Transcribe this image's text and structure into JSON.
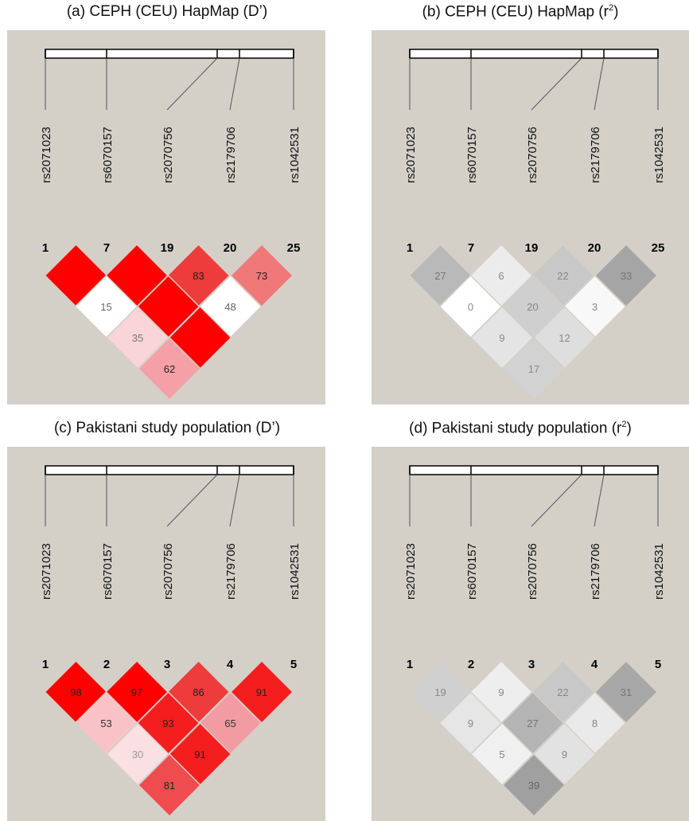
{
  "panels": [
    {
      "title": "(a) CEPH (CEU) HapMap (D’)",
      "title_main": "(a) CEPH (CEU) HapMap (D’)",
      "title_sup": "",
      "title_tail": "",
      "snps": [
        "rs2071023",
        "rs6070157",
        "rs2070756",
        "rs2179706",
        "rs1042531"
      ],
      "marker_numbers": [
        "1",
        "7",
        "19",
        "20",
        "25"
      ],
      "cells": [
        {
          "pair": [
            1,
            2
          ],
          "value": "",
          "color": "#ff0000",
          "text_color": "#000000"
        },
        {
          "pair": [
            2,
            3
          ],
          "value": "",
          "color": "#ff0000",
          "text_color": "#000000"
        },
        {
          "pair": [
            3,
            4
          ],
          "value": "83",
          "color": "#ee3b3b",
          "text_color": "#222222"
        },
        {
          "pair": [
            4,
            5
          ],
          "value": "73",
          "color": "#f07878",
          "text_color": "#222222"
        },
        {
          "pair": [
            1,
            3
          ],
          "value": "15",
          "color": "#ffffff",
          "text_color": "#666666"
        },
        {
          "pair": [
            2,
            4
          ],
          "value": "",
          "color": "#ff0000",
          "text_color": "#000000"
        },
        {
          "pair": [
            3,
            5
          ],
          "value": "48",
          "color": "#ffffff",
          "text_color": "#666666"
        },
        {
          "pair": [
            1,
            4
          ],
          "value": "35",
          "color": "#f9d4d8",
          "text_color": "#777777"
        },
        {
          "pair": [
            2,
            5
          ],
          "value": "",
          "color": "#ff0000",
          "text_color": "#000000"
        },
        {
          "pair": [
            1,
            5
          ],
          "value": "62",
          "color": "#f4a0a6",
          "text_color": "#222222"
        }
      ]
    },
    {
      "title": "(b) CEPH (CEU) HapMap (r2)",
      "title_main": "(b) CEPH (CEU) HapMap (r",
      "title_sup": "2",
      "title_tail": ")",
      "snps": [
        "rs2071023",
        "rs6070157",
        "rs2070756",
        "rs2179706",
        "rs1042531"
      ],
      "marker_numbers": [
        "1",
        "7",
        "19",
        "20",
        "25"
      ],
      "cells": [
        {
          "pair": [
            1,
            2
          ],
          "value": "27",
          "color": "#b9b9b9",
          "text_color": "#777777"
        },
        {
          "pair": [
            2,
            3
          ],
          "value": "6",
          "color": "#ececec",
          "text_color": "#888888"
        },
        {
          "pair": [
            3,
            4
          ],
          "value": "22",
          "color": "#c8c8c8",
          "text_color": "#888888"
        },
        {
          "pair": [
            4,
            5
          ],
          "value": "33",
          "color": "#a5a5a5",
          "text_color": "#777777"
        },
        {
          "pair": [
            1,
            3
          ],
          "value": "0",
          "color": "#ffffff",
          "text_color": "#888888"
        },
        {
          "pair": [
            2,
            4
          ],
          "value": "20",
          "color": "#cfcfcf",
          "text_color": "#888888"
        },
        {
          "pair": [
            3,
            5
          ],
          "value": "3",
          "color": "#f8f8f8",
          "text_color": "#888888"
        },
        {
          "pair": [
            1,
            4
          ],
          "value": "9",
          "color": "#e4e4e4",
          "text_color": "#888888"
        },
        {
          "pair": [
            2,
            5
          ],
          "value": "12",
          "color": "#dedede",
          "text_color": "#888888"
        },
        {
          "pair": [
            1,
            5
          ],
          "value": "17",
          "color": "#d2d2d2",
          "text_color": "#888888"
        }
      ]
    },
    {
      "title": "(c) Pakistani study population (D’)",
      "title_main": "(c) Pakistani study population (D’)",
      "title_sup": "",
      "title_tail": "",
      "snps": [
        "rs2071023",
        "rs6070157",
        "rs2070756",
        "rs2179706",
        "rs1042531"
      ],
      "marker_numbers": [
        "1",
        "2",
        "3",
        "4",
        "5"
      ],
      "cells": [
        {
          "pair": [
            1,
            2
          ],
          "value": "98",
          "color": "#ff0000",
          "text_color": "#222222"
        },
        {
          "pair": [
            2,
            3
          ],
          "value": "97",
          "color": "#ff0000",
          "text_color": "#222222"
        },
        {
          "pair": [
            3,
            4
          ],
          "value": "86",
          "color": "#ee3b3b",
          "text_color": "#222222"
        },
        {
          "pair": [
            4,
            5
          ],
          "value": "91",
          "color": "#f51e1e",
          "text_color": "#222222"
        },
        {
          "pair": [
            1,
            3
          ],
          "value": "53",
          "color": "#f8c2c6",
          "text_color": "#333333"
        },
        {
          "pair": [
            2,
            4
          ],
          "value": "93",
          "color": "#f51e1e",
          "text_color": "#222222"
        },
        {
          "pair": [
            3,
            5
          ],
          "value": "65",
          "color": "#f39ba2",
          "text_color": "#333333"
        },
        {
          "pair": [
            1,
            4
          ],
          "value": "30",
          "color": "#fbe0e3",
          "text_color": "#999999"
        },
        {
          "pair": [
            2,
            5
          ],
          "value": "91",
          "color": "#f51e1e",
          "text_color": "#222222"
        },
        {
          "pair": [
            1,
            5
          ],
          "value": "81",
          "color": "#ef4c50",
          "text_color": "#222222"
        }
      ]
    },
    {
      "title": "(d) Pakistani study population (r2)",
      "title_main": "(d) Pakistani study population (r",
      "title_sup": "2",
      "title_tail": ")",
      "snps": [
        "rs2071023",
        "rs6070157",
        "rs2070756",
        "rs2179706",
        "rs1042531"
      ],
      "marker_numbers": [
        "1",
        "2",
        "3",
        "4",
        "5"
      ],
      "cells": [
        {
          "pair": [
            1,
            2
          ],
          "value": "19",
          "color": "#d0d0d0",
          "text_color": "#888888"
        },
        {
          "pair": [
            2,
            3
          ],
          "value": "9",
          "color": "#eeeeee",
          "text_color": "#888888"
        },
        {
          "pair": [
            3,
            4
          ],
          "value": "22",
          "color": "#c8c8c8",
          "text_color": "#888888"
        },
        {
          "pair": [
            4,
            5
          ],
          "value": "31",
          "color": "#a8a8a8",
          "text_color": "#777777"
        },
        {
          "pair": [
            1,
            3
          ],
          "value": "9",
          "color": "#e6e6e6",
          "text_color": "#888888"
        },
        {
          "pair": [
            2,
            4
          ],
          "value": "27",
          "color": "#b4b4b4",
          "text_color": "#777777"
        },
        {
          "pair": [
            3,
            5
          ],
          "value": "8",
          "color": "#eaeaea",
          "text_color": "#888888"
        },
        {
          "pair": [
            1,
            4
          ],
          "value": "5",
          "color": "#f0f0f0",
          "text_color": "#888888"
        },
        {
          "pair": [
            2,
            5
          ],
          "value": "9",
          "color": "#e2e2e2",
          "text_color": "#888888"
        },
        {
          "pair": [
            1,
            5
          ],
          "value": "39",
          "color": "#a0a0a0",
          "text_color": "#666666"
        }
      ]
    }
  ]
}
